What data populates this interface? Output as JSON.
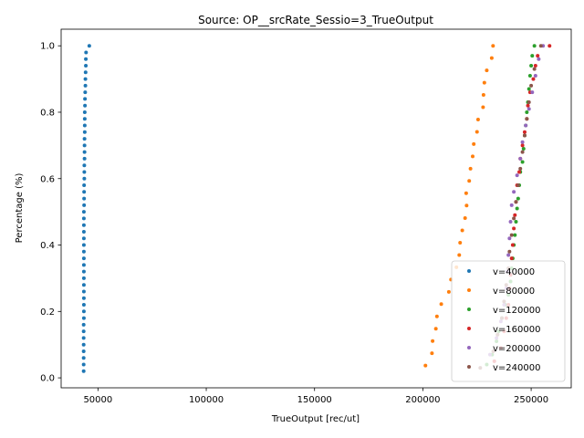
{
  "chart_data": {
    "type": "scatter",
    "title": "Source: OP__srcRate_Sessio=3_TrueOutput",
    "xlabel": "TrueOutput [rec/ut]",
    "ylabel": "Percentage (%)",
    "xlim": [
      33000,
      268500
    ],
    "ylim": [
      -0.03,
      1.05
    ],
    "xticks": [
      50000,
      100000,
      150000,
      200000,
      250000
    ],
    "yticks": [
      0.0,
      0.2,
      0.4,
      0.6,
      0.8,
      1.0
    ],
    "grid": false,
    "legend_position": "lower-right",
    "series": [
      {
        "name": "v=40000",
        "color": "#1f77b4",
        "points": [
          [
            43400,
            0.02
          ],
          [
            43400,
            0.04
          ],
          [
            43400,
            0.06
          ],
          [
            43400,
            0.08
          ],
          [
            43400,
            0.1
          ],
          [
            43400,
            0.12
          ],
          [
            43400,
            0.14
          ],
          [
            43400,
            0.16
          ],
          [
            43500,
            0.18
          ],
          [
            43500,
            0.2
          ],
          [
            43500,
            0.22
          ],
          [
            43500,
            0.24
          ],
          [
            43500,
            0.26
          ],
          [
            43500,
            0.28
          ],
          [
            43500,
            0.3
          ],
          [
            43500,
            0.32
          ],
          [
            43500,
            0.34
          ],
          [
            43500,
            0.36
          ],
          [
            43500,
            0.38
          ],
          [
            43500,
            0.4
          ],
          [
            43500,
            0.42
          ],
          [
            43500,
            0.44
          ],
          [
            43500,
            0.46
          ],
          [
            43500,
            0.48
          ],
          [
            43500,
            0.5
          ],
          [
            43600,
            0.52
          ],
          [
            43600,
            0.54
          ],
          [
            43600,
            0.56
          ],
          [
            43600,
            0.58
          ],
          [
            43700,
            0.6
          ],
          [
            43700,
            0.62
          ],
          [
            43700,
            0.64
          ],
          [
            43800,
            0.66
          ],
          [
            43800,
            0.68
          ],
          [
            43800,
            0.7
          ],
          [
            43800,
            0.72
          ],
          [
            43900,
            0.74
          ],
          [
            43900,
            0.76
          ],
          [
            43900,
            0.78
          ],
          [
            43900,
            0.8
          ],
          [
            44000,
            0.82
          ],
          [
            44000,
            0.84
          ],
          [
            44100,
            0.86
          ],
          [
            44200,
            0.88
          ],
          [
            44200,
            0.9
          ],
          [
            44300,
            0.92
          ],
          [
            44400,
            0.94
          ],
          [
            44400,
            0.96
          ],
          [
            44500,
            0.98
          ],
          [
            46000,
            1.0
          ]
        ]
      },
      {
        "name": "v=80000",
        "color": "#ff7f0e",
        "points": [
          [
            201200,
            0.037
          ],
          [
            204200,
            0.074
          ],
          [
            204500,
            0.111
          ],
          [
            206000,
            0.148
          ],
          [
            206500,
            0.185
          ],
          [
            208500,
            0.222
          ],
          [
            212000,
            0.259
          ],
          [
            213000,
            0.296
          ],
          [
            215500,
            0.333
          ],
          [
            216800,
            0.37
          ],
          [
            217200,
            0.407
          ],
          [
            218200,
            0.444
          ],
          [
            219500,
            0.481
          ],
          [
            220200,
            0.519
          ],
          [
            220000,
            0.556
          ],
          [
            221400,
            0.593
          ],
          [
            222000,
            0.63
          ],
          [
            223000,
            0.667
          ],
          [
            223500,
            0.704
          ],
          [
            225000,
            0.741
          ],
          [
            225500,
            0.778
          ],
          [
            227800,
            0.815
          ],
          [
            228000,
            0.852
          ],
          [
            228400,
            0.889
          ],
          [
            229500,
            0.926
          ],
          [
            231800,
            0.963
          ],
          [
            232400,
            1.0
          ]
        ]
      },
      {
        "name": "v=120000",
        "color": "#2ca02c",
        "points": [
          [
            229500,
            0.04
          ],
          [
            232000,
            0.07
          ],
          [
            234000,
            0.11
          ],
          [
            235000,
            0.14
          ],
          [
            236500,
            0.18
          ],
          [
            238000,
            0.22
          ],
          [
            239500,
            0.25
          ],
          [
            240500,
            0.29
          ],
          [
            241000,
            0.33
          ],
          [
            241500,
            0.36
          ],
          [
            242000,
            0.4
          ],
          [
            242500,
            0.43
          ],
          [
            243000,
            0.47
          ],
          [
            243500,
            0.51
          ],
          [
            244000,
            0.54
          ],
          [
            244500,
            0.58
          ],
          [
            245000,
            0.62
          ],
          [
            246000,
            0.65
          ],
          [
            246500,
            0.69
          ],
          [
            247000,
            0.73
          ],
          [
            247500,
            0.76
          ],
          [
            248000,
            0.8
          ],
          [
            248500,
            0.83
          ],
          [
            249000,
            0.87
          ],
          [
            249500,
            0.91
          ],
          [
            250000,
            0.94
          ],
          [
            250500,
            0.97
          ],
          [
            251500,
            1.0
          ]
        ]
      },
      {
        "name": "v=160000",
        "color": "#d62728",
        "points": [
          [
            233000,
            0.05
          ],
          [
            236000,
            0.09
          ],
          [
            237500,
            0.14
          ],
          [
            238500,
            0.18
          ],
          [
            239500,
            0.22
          ],
          [
            240000,
            0.27
          ],
          [
            240500,
            0.31
          ],
          [
            241000,
            0.36
          ],
          [
            241500,
            0.4
          ],
          [
            242000,
            0.45
          ],
          [
            242500,
            0.49
          ],
          [
            243000,
            0.53
          ],
          [
            243500,
            0.58
          ],
          [
            244500,
            0.62
          ],
          [
            245000,
            0.66
          ],
          [
            246000,
            0.7
          ],
          [
            247000,
            0.74
          ],
          [
            248000,
            0.78
          ],
          [
            248500,
            0.82
          ],
          [
            249500,
            0.86
          ],
          [
            251000,
            0.9
          ],
          [
            252000,
            0.94
          ],
          [
            253000,
            0.97
          ],
          [
            258500,
            1.0
          ]
        ]
      },
      {
        "name": "v=200000",
        "color": "#9467bd",
        "points": [
          [
            231000,
            0.07
          ],
          [
            234000,
            0.12
          ],
          [
            236000,
            0.17
          ],
          [
            237500,
            0.22
          ],
          [
            238500,
            0.27
          ],
          [
            239000,
            0.32
          ],
          [
            239500,
            0.37
          ],
          [
            240000,
            0.42
          ],
          [
            240500,
            0.47
          ],
          [
            241000,
            0.52
          ],
          [
            242000,
            0.56
          ],
          [
            243500,
            0.61
          ],
          [
            245000,
            0.66
          ],
          [
            246000,
            0.71
          ],
          [
            247500,
            0.76
          ],
          [
            249000,
            0.81
          ],
          [
            250500,
            0.86
          ],
          [
            252000,
            0.91
          ],
          [
            253500,
            0.96
          ],
          [
            255500,
            1.0
          ]
        ]
      },
      {
        "name": "v=240000",
        "color": "#8c564b",
        "points": [
          [
            226500,
            0.03
          ],
          [
            232500,
            0.08
          ],
          [
            234500,
            0.13
          ],
          [
            236500,
            0.18
          ],
          [
            237500,
            0.23
          ],
          [
            238500,
            0.28
          ],
          [
            239500,
            0.33
          ],
          [
            240000,
            0.38
          ],
          [
            241000,
            0.43
          ],
          [
            242000,
            0.48
          ],
          [
            243000,
            0.53
          ],
          [
            244000,
            0.58
          ],
          [
            245000,
            0.63
          ],
          [
            246000,
            0.68
          ],
          [
            247000,
            0.73
          ],
          [
            248000,
            0.78
          ],
          [
            249000,
            0.83
          ],
          [
            250000,
            0.88
          ],
          [
            251500,
            0.93
          ],
          [
            254500,
            1.0
          ]
        ]
      }
    ]
  }
}
